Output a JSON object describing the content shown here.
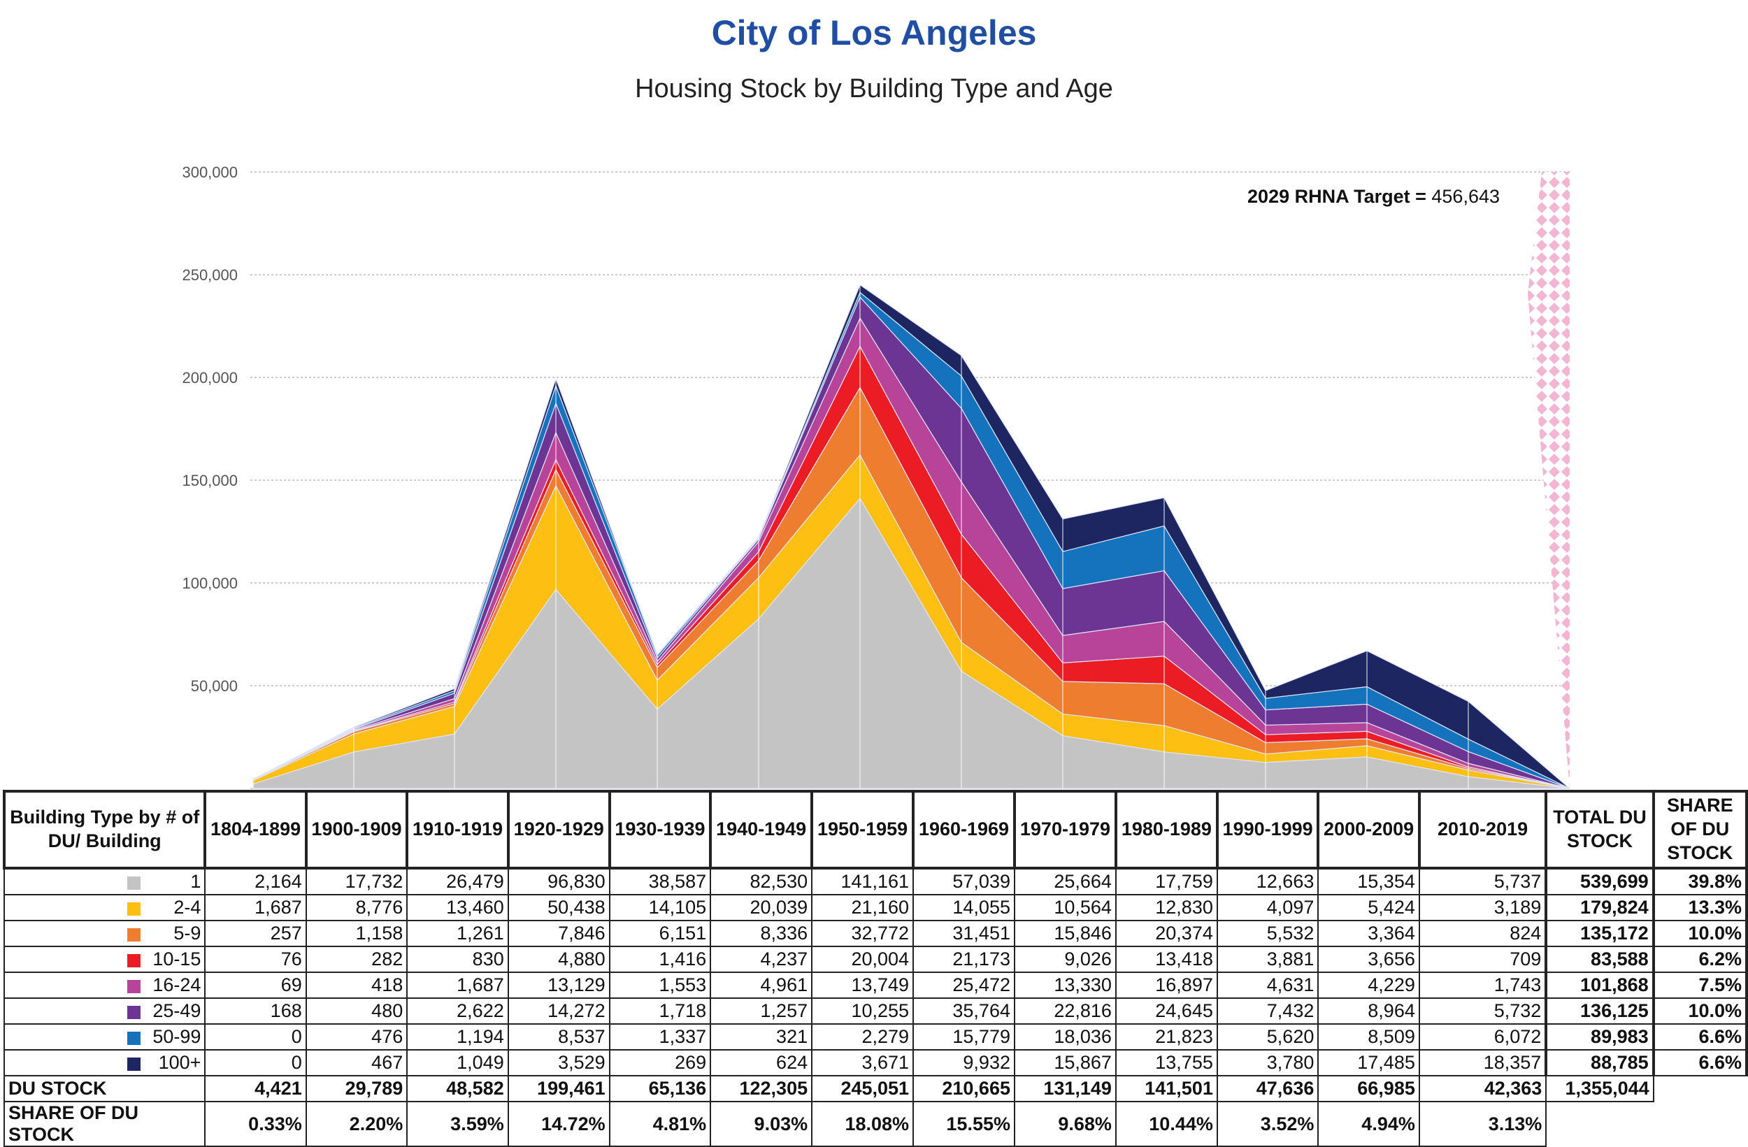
{
  "title": "City of Los Angeles",
  "subtitle": "Housing Stock by Building Type and Age",
  "annotation": {
    "label": "2029 RHNA Target =",
    "value": "456,643"
  },
  "chart_data": {
    "type": "area",
    "stacked": true,
    "title": "Housing Stock by Building Type and Age",
    "ylim": [
      0,
      300000
    ],
    "yticks": [
      "0",
      "50,000",
      "100,000",
      "150,000",
      "200,000",
      "250,000",
      "300,000"
    ],
    "categories": [
      "1804-1899",
      "1900-1909",
      "1910-1919",
      "1920-1929",
      "1930-1939",
      "1940-1949",
      "1950-1959",
      "1960-1969",
      "1970-1979",
      "1980-1989",
      "1990-1999",
      "2000-2009",
      "2010-2019"
    ],
    "series": [
      {
        "name": "1",
        "color": "#c4c4c4",
        "values": [
          2164,
          17732,
          26479,
          96830,
          38587,
          82530,
          141161,
          57039,
          25664,
          17759,
          12663,
          15354,
          5737
        ]
      },
      {
        "name": "2-4",
        "color": "#fdbf12",
        "values": [
          1687,
          8776,
          13460,
          50438,
          14105,
          20039,
          21160,
          14055,
          10564,
          12830,
          4097,
          5424,
          3189
        ]
      },
      {
        "name": "5-9",
        "color": "#ee7d30",
        "values": [
          257,
          1158,
          1261,
          7846,
          6151,
          8336,
          32772,
          31451,
          15846,
          20374,
          5532,
          3364,
          824
        ]
      },
      {
        "name": "10-15",
        "color": "#ec1c24",
        "values": [
          76,
          282,
          830,
          4880,
          1416,
          4237,
          20004,
          21173,
          9026,
          13418,
          3881,
          3656,
          709
        ]
      },
      {
        "name": "16-24",
        "color": "#b8449a",
        "values": [
          69,
          418,
          1687,
          13129,
          1553,
          4961,
          13749,
          25472,
          13330,
          16897,
          4631,
          4229,
          1743
        ]
      },
      {
        "name": "25-49",
        "color": "#6c3594",
        "values": [
          168,
          480,
          2622,
          14272,
          1718,
          1257,
          10255,
          35764,
          22816,
          24645,
          7432,
          8964,
          5732
        ]
      },
      {
        "name": "50-99",
        "color": "#1572bd",
        "values": [
          0,
          476,
          1194,
          8537,
          1337,
          321,
          2279,
          15779,
          18036,
          21823,
          5620,
          8509,
          6072
        ]
      },
      {
        "name": "100+",
        "color": "#1d2660",
        "values": [
          0,
          467,
          1049,
          3529,
          269,
          624,
          3671,
          9932,
          15867,
          13755,
          3780,
          17485,
          18357
        ]
      }
    ],
    "rhna_target": 456643,
    "rhna_color": "#f2b6d2"
  },
  "table": {
    "header_label": "Building Type by # of DU/ Building",
    "total_header": "TOTAL DU STOCK",
    "share_header": "SHARE OF DU STOCK",
    "rows": [
      {
        "label": "1",
        "cells": [
          "2,164",
          "17,732",
          "26,479",
          "96,830",
          "38,587",
          "82,530",
          "141,161",
          "57,039",
          "25,664",
          "17,759",
          "12,663",
          "15,354",
          "5,737"
        ],
        "total": "539,699",
        "share": "39.8%"
      },
      {
        "label": "2-4",
        "cells": [
          "1,687",
          "8,776",
          "13,460",
          "50,438",
          "14,105",
          "20,039",
          "21,160",
          "14,055",
          "10,564",
          "12,830",
          "4,097",
          "5,424",
          "3,189"
        ],
        "total": "179,824",
        "share": "13.3%"
      },
      {
        "label": "5-9",
        "cells": [
          "257",
          "1,158",
          "1,261",
          "7,846",
          "6,151",
          "8,336",
          "32,772",
          "31,451",
          "15,846",
          "20,374",
          "5,532",
          "3,364",
          "824"
        ],
        "total": "135,172",
        "share": "10.0%"
      },
      {
        "label": "10-15",
        "cells": [
          "76",
          "282",
          "830",
          "4,880",
          "1,416",
          "4,237",
          "20,004",
          "21,173",
          "9,026",
          "13,418",
          "3,881",
          "3,656",
          "709"
        ],
        "total": "83,588",
        "share": "6.2%"
      },
      {
        "label": "16-24",
        "cells": [
          "69",
          "418",
          "1,687",
          "13,129",
          "1,553",
          "4,961",
          "13,749",
          "25,472",
          "13,330",
          "16,897",
          "4,631",
          "4,229",
          "1,743"
        ],
        "total": "101,868",
        "share": "7.5%"
      },
      {
        "label": "25-49",
        "cells": [
          "168",
          "480",
          "2,622",
          "14,272",
          "1,718",
          "1,257",
          "10,255",
          "35,764",
          "22,816",
          "24,645",
          "7,432",
          "8,964",
          "5,732"
        ],
        "total": "136,125",
        "share": "10.0%"
      },
      {
        "label": "50-99",
        "cells": [
          "0",
          "476",
          "1,194",
          "8,537",
          "1,337",
          "321",
          "2,279",
          "15,779",
          "18,036",
          "21,823",
          "5,620",
          "8,509",
          "6,072"
        ],
        "total": "89,983",
        "share": "6.6%"
      },
      {
        "label": "100+",
        "cells": [
          "0",
          "467",
          "1,049",
          "3,529",
          "269",
          "624",
          "3,671",
          "9,932",
          "15,867",
          "13,755",
          "3,780",
          "17,485",
          "18,357"
        ],
        "total": "88,785",
        "share": "6.6%"
      }
    ],
    "du_stock": {
      "label": "DU STOCK",
      "cells": [
        "4,421",
        "29,789",
        "48,582",
        "199,461",
        "65,136",
        "122,305",
        "245,051",
        "210,665",
        "131,149",
        "141,501",
        "47,636",
        "66,985",
        "42,363"
      ],
      "total": "1,355,044"
    },
    "share_row": {
      "label": "SHARE OF DU STOCK",
      "cells": [
        "0.33%",
        "2.20%",
        "3.59%",
        "14.72%",
        "4.81%",
        "9.03%",
        "18.08%",
        "15.55%",
        "9.68%",
        "10.44%",
        "3.52%",
        "4.94%",
        "3.13%"
      ]
    }
  }
}
